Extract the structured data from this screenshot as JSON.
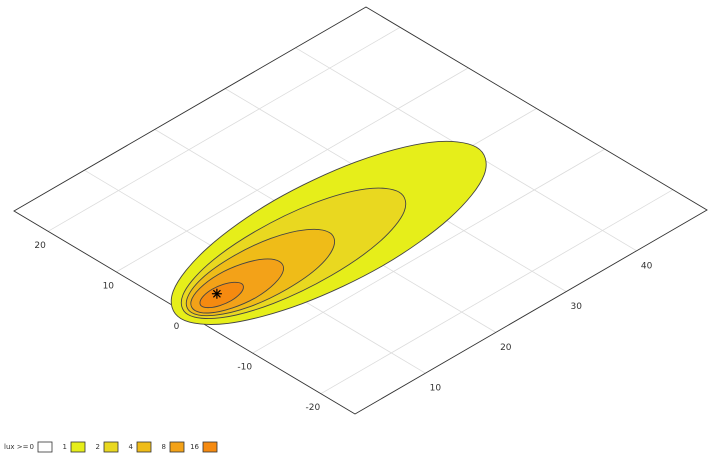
{
  "chart_data": {
    "type": "contour",
    "xlim": [
      0,
      50
    ],
    "ylim": [
      -25,
      25
    ],
    "xticks": [
      10,
      20,
      30,
      40
    ],
    "yticks": [
      -20,
      -10,
      0,
      10,
      20
    ],
    "grid": true,
    "legend": {
      "title": "lux >=",
      "levels": [
        0,
        1,
        2,
        4,
        8,
        16
      ],
      "colors": [
        "#ffffff",
        "#e6ee1a",
        "#e9d820",
        "#efbc18",
        "#f3a218",
        "#f58a10"
      ]
    },
    "contours": [
      {
        "x": [
          41,
          38.2,
          30.5,
          20,
          9.5,
          1.8,
          -1,
          1.8,
          9.5,
          20,
          30.5,
          38.2
        ],
        "y": [
          -0.5,
          3.5,
          6.4,
          7.5,
          6.4,
          3.5,
          -0.5,
          -4.5,
          -7.4,
          -8.5,
          -7.4,
          -4.5
        ]
      },
      {
        "x": [
          30,
          28,
          22.5,
          15,
          7.5,
          2,
          0,
          2,
          7.5,
          15,
          22.5,
          28
        ],
        "y": [
          -0.5,
          2.3,
          4.3,
          5,
          4.3,
          2.3,
          -0.5,
          -3.3,
          -5.3,
          -6,
          -5.3,
          -3.3
        ]
      },
      {
        "x": [
          20.1,
          18.8,
          15.2,
          10.3,
          5.4,
          1.8,
          0.5,
          1.8,
          5.4,
          10.3,
          15.2,
          18.8
        ],
        "y": [
          -0.5,
          1.5,
          3,
          3.5,
          3,
          1.5,
          -0.5,
          -2.5,
          -4,
          -4.5,
          -4,
          -2.5
        ]
      },
      {
        "x": [
          13,
          12.2,
          10,
          7,
          4,
          1.8,
          1,
          1.8,
          4,
          7,
          10,
          12.2
        ],
        "y": [
          -0.5,
          0.9,
          1.9,
          2.3,
          1.9,
          0.9,
          -0.5,
          -1.9,
          -2.9,
          -3.3,
          -2.9,
          -1.9
        ]
      },
      {
        "x": [
          7.6,
          7.2,
          6.2,
          4.8,
          3.4,
          2.4,
          2,
          2.4,
          3.4,
          4.8,
          6.2,
          7.2
        ],
        "y": [
          -0.5,
          0.2,
          0.7,
          0.9,
          0.7,
          0.2,
          -0.5,
          -1.2,
          -1.7,
          -1.9,
          -1.7,
          -1.2
        ]
      }
    ],
    "light_source": {
      "x": 4.6,
      "y": 0
    }
  }
}
